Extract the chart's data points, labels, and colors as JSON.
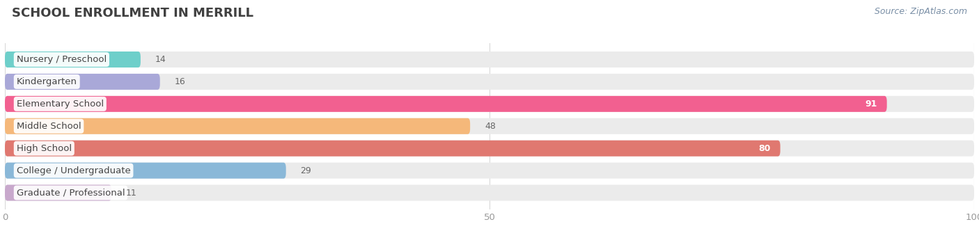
{
  "title": "SCHOOL ENROLLMENT IN MERRILL",
  "source": "Source: ZipAtlas.com",
  "categories": [
    "Nursery / Preschool",
    "Kindergarten",
    "Elementary School",
    "Middle School",
    "High School",
    "College / Undergraduate",
    "Graduate / Professional"
  ],
  "values": [
    14,
    16,
    91,
    48,
    80,
    29,
    11
  ],
  "bar_colors": [
    "#6ecfca",
    "#a9a8d8",
    "#f26090",
    "#f5b87a",
    "#e07870",
    "#8ab8d8",
    "#c8a8cc"
  ],
  "bar_bg_color": "#ebebeb",
  "xlim": [
    0,
    100
  ],
  "xticks": [
    0,
    50,
    100
  ],
  "title_fontsize": 13,
  "label_fontsize": 9.5,
  "value_fontsize": 9,
  "source_fontsize": 9,
  "bar_height": 0.72,
  "background_color": "#ffffff",
  "title_color": "#404040",
  "label_color": "#444444",
  "value_color_inside": "#ffffff",
  "value_color_outside": "#666666",
  "source_color": "#7a8fa6",
  "grid_color": "#d8d8d8",
  "tick_color": "#999999",
  "inside_threshold": 55
}
